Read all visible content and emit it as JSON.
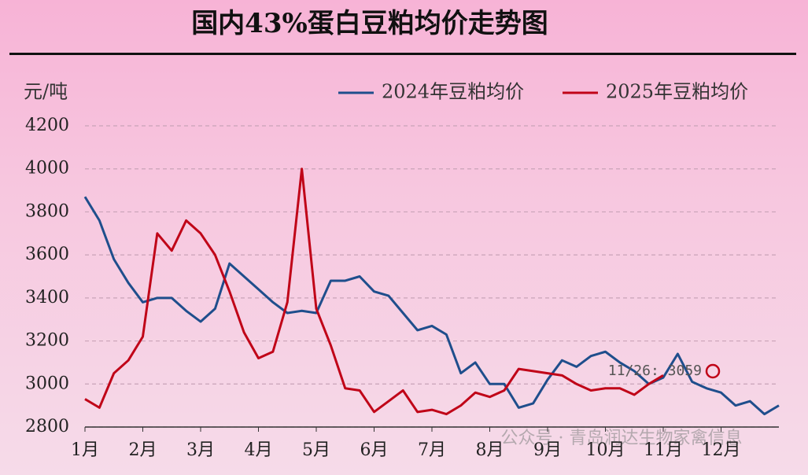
{
  "chart_data": {
    "type": "line",
    "title": "国内43%蛋白豆粕均价走势图",
    "y_label": "元/吨",
    "ylim": [
      2800,
      4200
    ],
    "yticks": [
      2800,
      3000,
      3200,
      3400,
      3600,
      3800,
      4000,
      4200
    ],
    "xlim": [
      0,
      12
    ],
    "xticks": [
      {
        "value": 0,
        "label": "1月"
      },
      {
        "value": 1,
        "label": "2月"
      },
      {
        "value": 2,
        "label": "3月"
      },
      {
        "value": 3,
        "label": "4月"
      },
      {
        "value": 4,
        "label": "5月"
      },
      {
        "value": 5,
        "label": "6月"
      },
      {
        "value": 6,
        "label": "7月"
      },
      {
        "value": 7,
        "label": "8月"
      },
      {
        "value": 8,
        "label": "9月"
      },
      {
        "value": 9,
        "label": "10月"
      },
      {
        "value": 10,
        "label": "11月"
      },
      {
        "value": 11,
        "label": "12月"
      }
    ],
    "grid": true,
    "legend": "top-right",
    "annotation": "11/26: 3059",
    "watermark": "公众号 · 青岛润达生物家禽信息",
    "series": [
      {
        "name": "2024年豆粕均价",
        "color": "#1f4e8c",
        "x": [
          0,
          0.25,
          0.5,
          0.75,
          1,
          1.25,
          1.5,
          1.75,
          2,
          2.25,
          2.5,
          2.75,
          3,
          3.25,
          3.5,
          3.75,
          4,
          4.25,
          4.5,
          4.75,
          5,
          5.25,
          5.5,
          5.75,
          6,
          6.25,
          6.5,
          6.75,
          7,
          7.25,
          7.5,
          7.75,
          8,
          8.25,
          8.5,
          8.75,
          9,
          9.25,
          9.5,
          9.75,
          10,
          10.25,
          10.5,
          10.75,
          11,
          11.25,
          11.5,
          11.75,
          12
        ],
        "values": [
          3870,
          3760,
          3580,
          3470,
          3380,
          3400,
          3400,
          3340,
          3290,
          3350,
          3560,
          3500,
          3440,
          3380,
          3330,
          3340,
          3330,
          3480,
          3480,
          3500,
          3430,
          3410,
          3330,
          3250,
          3270,
          3230,
          3050,
          3100,
          3000,
          3000,
          2890,
          2910,
          3020,
          3110,
          3080,
          3130,
          3150,
          3100,
          3060,
          3000,
          3030,
          3140,
          3010,
          2980,
          2960,
          2900,
          2920,
          2860,
          2900
        ]
      },
      {
        "name": "2025年豆粕均价",
        "color": "#c00418",
        "x": [
          0,
          0.25,
          0.5,
          0.75,
          1,
          1.25,
          1.5,
          1.75,
          2,
          2.25,
          2.5,
          2.75,
          3,
          3.25,
          3.5,
          3.75,
          4,
          4.25,
          4.5,
          4.75,
          5,
          5.25,
          5.5,
          5.75,
          6,
          6.25,
          6.5,
          6.75,
          7,
          7.25,
          7.5,
          7.75,
          8,
          8.25,
          8.5,
          8.75,
          9,
          9.25,
          9.5,
          9.75,
          10
        ],
        "values": [
          2930,
          2890,
          3050,
          3110,
          3220,
          3700,
          3620,
          3760,
          3700,
          3600,
          3430,
          3240,
          3120,
          3150,
          3380,
          4000,
          3350,
          3180,
          2980,
          2970,
          2870,
          2920,
          2970,
          2870,
          2880,
          2860,
          2900,
          2960,
          2940,
          2970,
          3070,
          3060,
          3050,
          3040,
          3000,
          2970,
          2980,
          2980,
          2950,
          3000,
          3040
        ]
      }
    ]
  }
}
